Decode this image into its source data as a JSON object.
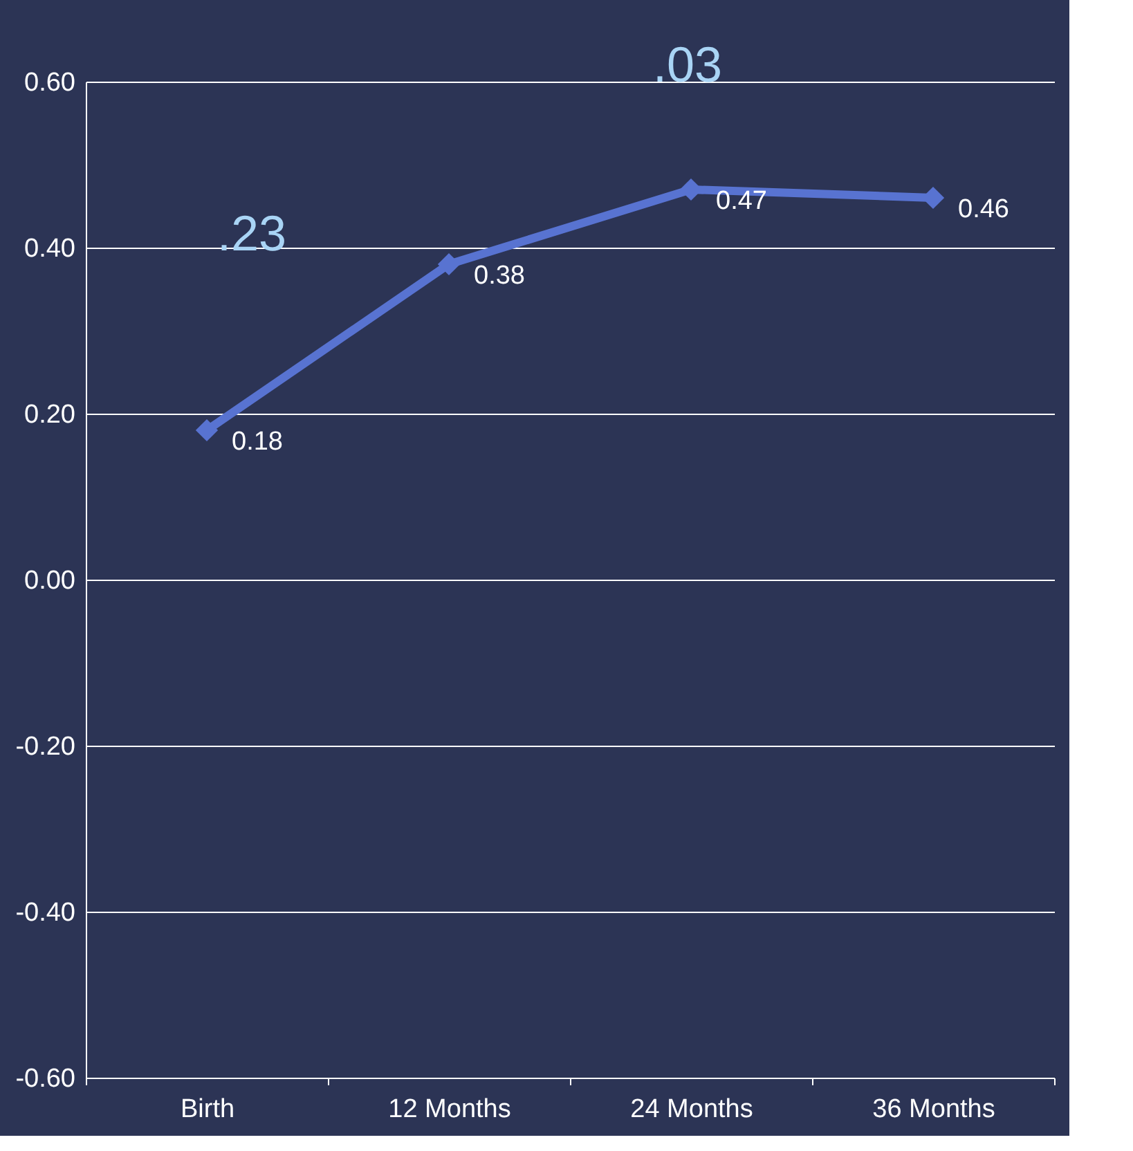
{
  "chart_data": {
    "type": "line",
    "categories": [
      "Birth",
      "12 Months",
      "24 Months",
      "36 Months"
    ],
    "series": [
      {
        "color": "#5873d1",
        "values": [
          0.18,
          0.38,
          0.47,
          0.46
        ]
      }
    ],
    "ylim": [
      -0.6,
      0.6
    ],
    "yticks": [
      {
        "value": -0.6,
        "label": "-0.60"
      },
      {
        "value": -0.4,
        "label": "-0.40"
      },
      {
        "value": -0.2,
        "label": "-0.20"
      },
      {
        "value": 0,
        "label": "0.00"
      },
      {
        "value": 0.2,
        "label": "0.20"
      },
      {
        "value": 0.4,
        "label": "0.40"
      },
      {
        "value": 0.6,
        "label": "0.60"
      }
    ],
    "grid": "y",
    "marker": "diamond",
    "line_style": "solid",
    "data_labels": true,
    "annotations": [
      ".23",
      ".03"
    ]
  }
}
